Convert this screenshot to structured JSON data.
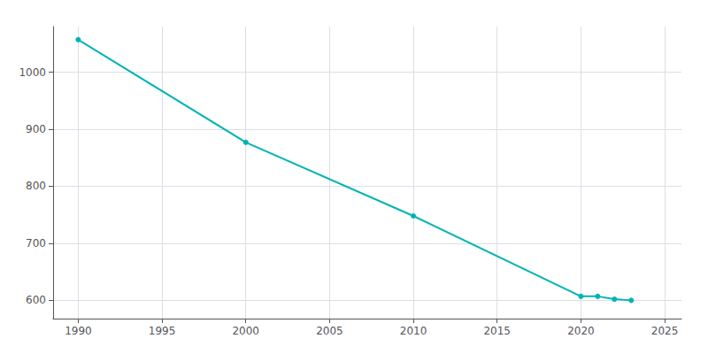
{
  "chart_data": {
    "type": "line",
    "x": [
      1990,
      2000,
      2010,
      2020,
      2021,
      2022,
      2023
    ],
    "values": [
      1057,
      877,
      748,
      607,
      607,
      602,
      600
    ],
    "color": "#00b4b4",
    "marker": "circle",
    "xlim": [
      1988.5,
      2026
    ],
    "ylim": [
      568,
      1080
    ],
    "xticks": [
      1990,
      1995,
      2000,
      2005,
      2010,
      2015,
      2020,
      2025
    ],
    "yticks": [
      600,
      700,
      800,
      900,
      1000
    ],
    "grid": true
  }
}
